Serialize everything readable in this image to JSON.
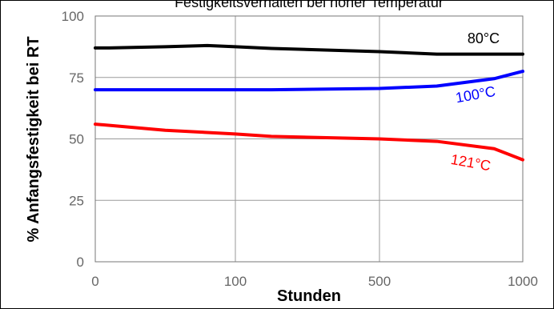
{
  "chart_data": {
    "type": "line",
    "title": "Festigkeitsverhalten bei hoher Temperatur",
    "xlabel": "Stunden",
    "ylabel": "% Anfangsfestigkeit bei RT",
    "x_tick_labels": [
      "0",
      "100",
      "500",
      "1000"
    ],
    "x_tick_values": [
      0,
      100,
      500,
      1000
    ],
    "x_scale_note": "non-linear axis: 0, 100, 500, 1000 shown at equal spacing",
    "y_ticks": [
      0,
      25,
      50,
      75,
      100
    ],
    "ylim": [
      0,
      100
    ],
    "grid": true,
    "legend": "inline labels",
    "series": [
      {
        "name": "80°C",
        "color": "#000000",
        "x": [
          0,
          10,
          50,
          80,
          100,
          200,
          500,
          700,
          1000
        ],
        "values": [
          87,
          87,
          87.5,
          88,
          87.5,
          86.8,
          85.5,
          84.5,
          84.5
        ]
      },
      {
        "name": "100°C",
        "color": "#0000ff",
        "x": [
          0,
          10,
          50,
          100,
          200,
          500,
          700,
          900,
          1000
        ],
        "values": [
          70,
          70,
          70,
          70,
          70,
          70.5,
          71.5,
          74.5,
          77.5
        ]
      },
      {
        "name": "121°C",
        "color": "#ff0000",
        "x": [
          0,
          20,
          50,
          100,
          200,
          500,
          700,
          900,
          1000
        ],
        "values": [
          56,
          55,
          53.5,
          52,
          51,
          50,
          49,
          46,
          41.5
        ]
      }
    ]
  }
}
